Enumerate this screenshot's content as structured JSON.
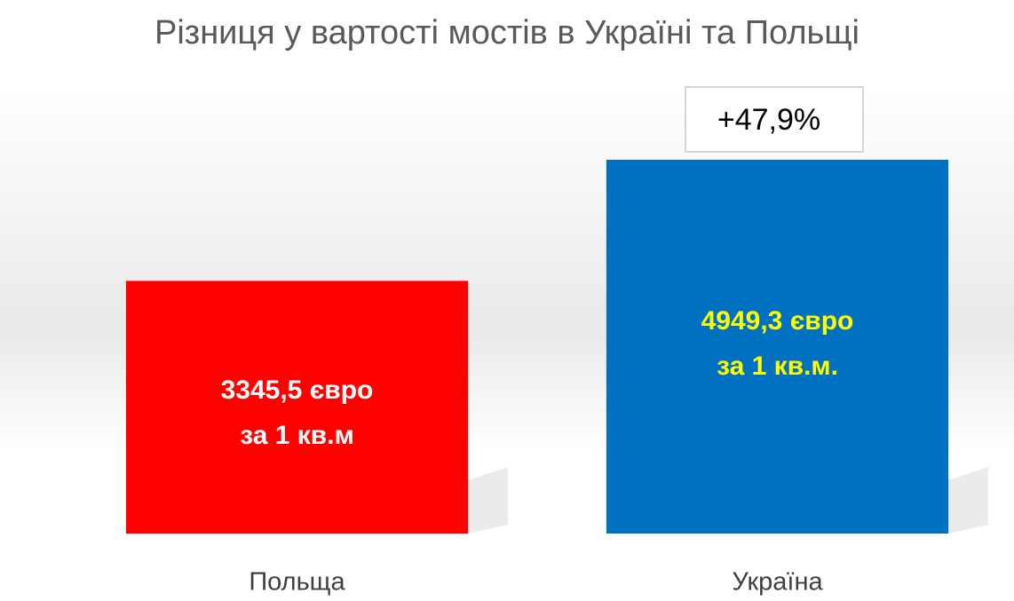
{
  "chart_data": {
    "type": "bar",
    "title": "Різниця у вартості мостів в Україні та Польщі",
    "categories": [
      "Польща",
      "Україна"
    ],
    "values": [
      3345.5,
      4949.3
    ],
    "value_labels": [
      "3345,5 євро\nза 1 кв.м",
      "4949,3 євро\nза 1 кв.м."
    ],
    "colors": [
      "#ff0000",
      "#0070c0"
    ],
    "value_label_colors": [
      "#ffffff",
      "#ffff00"
    ],
    "annotation": "+47,9%"
  }
}
